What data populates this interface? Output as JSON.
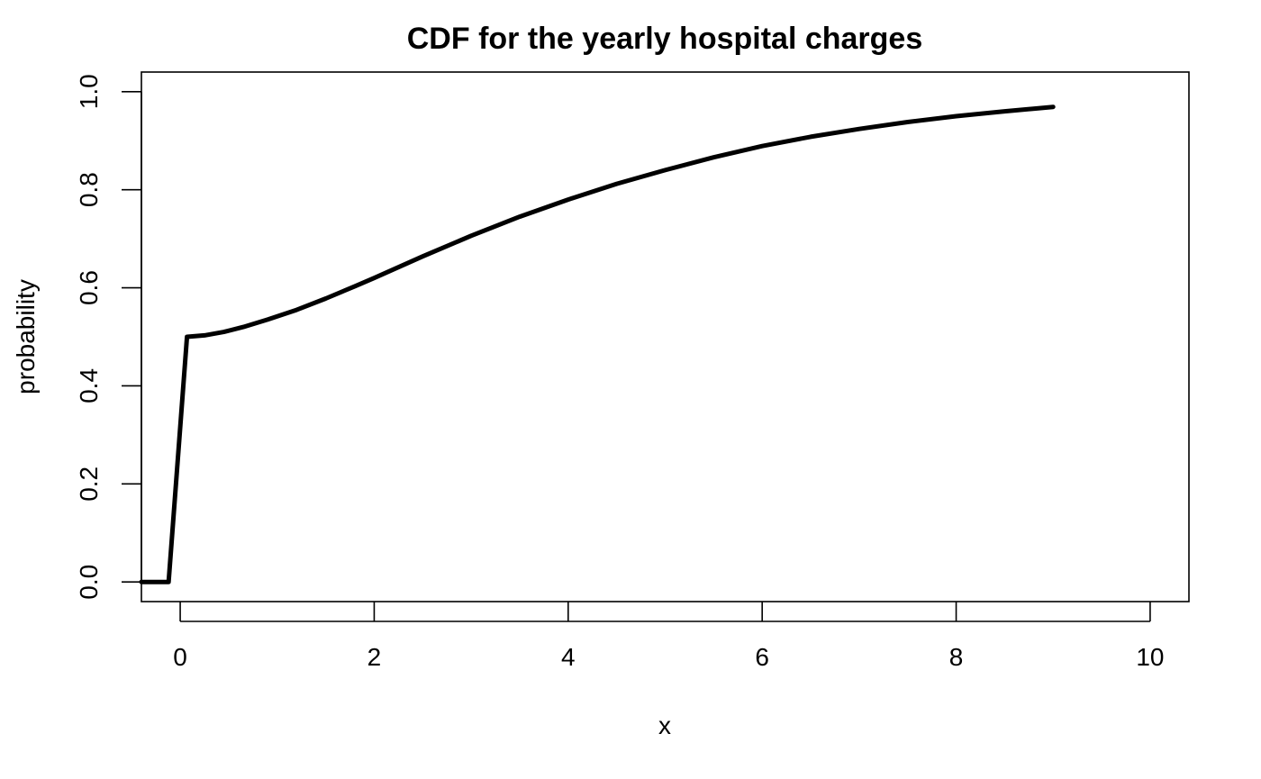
{
  "chart_data": {
    "type": "line",
    "title": "CDF for the yearly hospital charges",
    "xlabel": "x",
    "ylabel": "probability",
    "xlim": [
      -0.4,
      10.4
    ],
    "ylim": [
      -0.04,
      1.04
    ],
    "x_ticks": [
      0,
      2,
      4,
      6,
      8,
      10
    ],
    "y_ticks": [
      0.0,
      0.2,
      0.4,
      0.6,
      0.8,
      1.0
    ],
    "x_tick_labels": [
      "0",
      "2",
      "4",
      "6",
      "8",
      "10"
    ],
    "y_tick_labels": [
      "0.0",
      "0.2",
      "0.4",
      "0.6",
      "0.8",
      "1.0"
    ],
    "grid": false,
    "line_color": "#000000",
    "series": [
      {
        "x": [
          -0.4,
          -0.12,
          0.07,
          0.25,
          0.45,
          0.65,
          0.9,
          1.2,
          1.5,
          1.8,
          2.0,
          2.5,
          3.0,
          3.5,
          4.0,
          4.5,
          5.0,
          5.5,
          6.0,
          6.5,
          7.0,
          7.5,
          8.0,
          8.5,
          9.0
        ],
        "y": [
          0.0,
          0.0,
          0.5,
          0.503,
          0.51,
          0.52,
          0.535,
          0.555,
          0.578,
          0.603,
          0.62,
          0.664,
          0.706,
          0.745,
          0.78,
          0.812,
          0.84,
          0.866,
          0.889,
          0.908,
          0.924,
          0.938,
          0.95,
          0.96,
          0.969
        ]
      }
    ]
  }
}
